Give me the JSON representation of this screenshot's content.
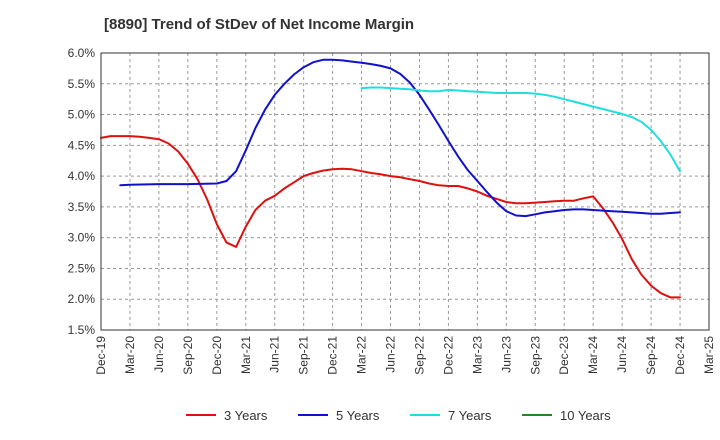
{
  "chart_data": {
    "type": "line",
    "title": "[8890]  Trend of StDev of Net Income Margin",
    "xlabel": "",
    "ylabel": "",
    "x_ticks": [
      "Dec-19",
      "Mar-20",
      "Jun-20",
      "Sep-20",
      "Dec-20",
      "Mar-21",
      "Jun-21",
      "Sep-21",
      "Dec-21",
      "Mar-22",
      "Jun-22",
      "Sep-22",
      "Dec-22",
      "Mar-23",
      "Jun-23",
      "Sep-23",
      "Dec-23",
      "Mar-24",
      "Jun-24",
      "Sep-24",
      "Dec-24",
      "Mar-25"
    ],
    "y_ticks": [
      "1.5%",
      "2.0%",
      "2.5%",
      "3.0%",
      "3.5%",
      "4.0%",
      "4.5%",
      "5.0%",
      "5.5%",
      "6.0%"
    ],
    "ylim": [
      1.5,
      6.0
    ],
    "grid": "dashed",
    "legend_position": "bottom",
    "series": [
      {
        "name": "3 Years",
        "color": "#dd1111",
        "points": [
          [
            "Dec-19",
            4.62
          ],
          [
            "Jan-20",
            4.65
          ],
          [
            "Feb-20",
            4.65
          ],
          [
            "Mar-20",
            4.65
          ],
          [
            "Apr-20",
            4.64
          ],
          [
            "May-20",
            4.62
          ],
          [
            "Jun-20",
            4.6
          ],
          [
            "Jul-20",
            4.53
          ],
          [
            "Aug-20",
            4.4
          ],
          [
            "Sep-20",
            4.2
          ],
          [
            "Oct-20",
            3.95
          ],
          [
            "Nov-20",
            3.62
          ],
          [
            "Dec-20",
            3.22
          ],
          [
            "Jan-21",
            2.92
          ],
          [
            "Feb-21",
            2.85
          ],
          [
            "Mar-21",
            3.18
          ],
          [
            "Apr-21",
            3.45
          ],
          [
            "May-21",
            3.6
          ],
          [
            "Jun-21",
            3.68
          ],
          [
            "Jul-21",
            3.8
          ],
          [
            "Aug-21",
            3.9
          ],
          [
            "Sep-21",
            4.0
          ],
          [
            "Oct-21",
            4.05
          ],
          [
            "Nov-21",
            4.09
          ],
          [
            "Dec-21",
            4.11
          ],
          [
            "Jan-22",
            4.12
          ],
          [
            "Feb-22",
            4.11
          ],
          [
            "Mar-22",
            4.08
          ],
          [
            "Apr-22",
            4.05
          ],
          [
            "May-22",
            4.03
          ],
          [
            "Jun-22",
            4.0
          ],
          [
            "Jul-22",
            3.98
          ],
          [
            "Aug-22",
            3.95
          ],
          [
            "Sep-22",
            3.92
          ],
          [
            "Oct-22",
            3.88
          ],
          [
            "Nov-22",
            3.85
          ],
          [
            "Dec-22",
            3.84
          ],
          [
            "Jan-23",
            3.84
          ],
          [
            "Feb-23",
            3.8
          ],
          [
            "Mar-23",
            3.75
          ],
          [
            "Apr-23",
            3.68
          ],
          [
            "May-23",
            3.63
          ],
          [
            "Jun-23",
            3.58
          ],
          [
            "Jul-23",
            3.56
          ],
          [
            "Aug-23",
            3.56
          ],
          [
            "Sep-23",
            3.57
          ],
          [
            "Oct-23",
            3.58
          ],
          [
            "Nov-23",
            3.59
          ],
          [
            "Dec-23",
            3.6
          ],
          [
            "Jan-24",
            3.6
          ],
          [
            "Feb-24",
            3.64
          ],
          [
            "Mar-24",
            3.67
          ],
          [
            "Apr-24",
            3.48
          ],
          [
            "May-24",
            3.25
          ],
          [
            "Jun-24",
            2.98
          ],
          [
            "Jul-24",
            2.65
          ],
          [
            "Aug-24",
            2.4
          ],
          [
            "Sep-24",
            2.22
          ],
          [
            "Oct-24",
            2.1
          ],
          [
            "Nov-24",
            2.03
          ],
          [
            "Dec-24",
            2.03
          ]
        ]
      },
      {
        "name": "5 Years",
        "color": "#1111cc",
        "points": [
          [
            "Feb-20",
            3.85
          ],
          [
            "Mar-20",
            3.86
          ],
          [
            "Jun-20",
            3.87
          ],
          [
            "Sep-20",
            3.87
          ],
          [
            "Dec-20",
            3.88
          ],
          [
            "Jan-21",
            3.92
          ],
          [
            "Feb-21",
            4.08
          ],
          [
            "Mar-21",
            4.42
          ],
          [
            "Apr-21",
            4.78
          ],
          [
            "May-21",
            5.08
          ],
          [
            "Jun-21",
            5.32
          ],
          [
            "Jul-21",
            5.5
          ],
          [
            "Aug-21",
            5.65
          ],
          [
            "Sep-21",
            5.77
          ],
          [
            "Oct-21",
            5.85
          ],
          [
            "Nov-21",
            5.89
          ],
          [
            "Dec-21",
            5.89
          ],
          [
            "Jan-22",
            5.88
          ],
          [
            "Feb-22",
            5.86
          ],
          [
            "Mar-22",
            5.84
          ],
          [
            "Apr-22",
            5.82
          ],
          [
            "May-22",
            5.79
          ],
          [
            "Jun-22",
            5.75
          ],
          [
            "Jul-22",
            5.66
          ],
          [
            "Aug-22",
            5.52
          ],
          [
            "Sep-22",
            5.32
          ],
          [
            "Oct-22",
            5.08
          ],
          [
            "Nov-22",
            4.83
          ],
          [
            "Dec-22",
            4.57
          ],
          [
            "Jan-23",
            4.32
          ],
          [
            "Feb-23",
            4.1
          ],
          [
            "Mar-23",
            3.92
          ],
          [
            "Apr-23",
            3.74
          ],
          [
            "May-23",
            3.57
          ],
          [
            "Jun-23",
            3.43
          ],
          [
            "Jul-23",
            3.36
          ],
          [
            "Aug-23",
            3.35
          ],
          [
            "Sep-23",
            3.38
          ],
          [
            "Oct-23",
            3.41
          ],
          [
            "Nov-23",
            3.43
          ],
          [
            "Dec-23",
            3.45
          ],
          [
            "Jan-24",
            3.46
          ],
          [
            "Feb-24",
            3.46
          ],
          [
            "Mar-24",
            3.45
          ],
          [
            "Apr-24",
            3.44
          ],
          [
            "May-24",
            3.43
          ],
          [
            "Jun-24",
            3.42
          ],
          [
            "Jul-24",
            3.41
          ],
          [
            "Aug-24",
            3.4
          ],
          [
            "Sep-24",
            3.39
          ],
          [
            "Oct-24",
            3.39
          ],
          [
            "Nov-24",
            3.4
          ],
          [
            "Dec-24",
            3.41
          ]
        ]
      },
      {
        "name": "7 Years",
        "color": "#22dddd",
        "points": [
          [
            "Mar-22",
            5.43
          ],
          [
            "Apr-22",
            5.44
          ],
          [
            "May-22",
            5.44
          ],
          [
            "Jun-22",
            5.43
          ],
          [
            "Jul-22",
            5.42
          ],
          [
            "Aug-22",
            5.41
          ],
          [
            "Sep-22",
            5.39
          ],
          [
            "Oct-22",
            5.38
          ],
          [
            "Nov-22",
            5.38
          ],
          [
            "Dec-22",
            5.4
          ],
          [
            "Jan-23",
            5.39
          ],
          [
            "Feb-23",
            5.38
          ],
          [
            "Mar-23",
            5.37
          ],
          [
            "Apr-23",
            5.36
          ],
          [
            "May-23",
            5.35
          ],
          [
            "Jun-23",
            5.35
          ],
          [
            "Jul-23",
            5.35
          ],
          [
            "Aug-23",
            5.35
          ],
          [
            "Sep-23",
            5.34
          ],
          [
            "Oct-23",
            5.32
          ],
          [
            "Nov-23",
            5.29
          ],
          [
            "Dec-23",
            5.25
          ],
          [
            "Jan-24",
            5.21
          ],
          [
            "Feb-24",
            5.17
          ],
          [
            "Mar-24",
            5.13
          ],
          [
            "Apr-24",
            5.09
          ],
          [
            "May-24",
            5.05
          ],
          [
            "Jun-24",
            5.01
          ],
          [
            "Jul-24",
            4.96
          ],
          [
            "Aug-24",
            4.88
          ],
          [
            "Sep-24",
            4.75
          ],
          [
            "Oct-24",
            4.57
          ],
          [
            "Nov-24",
            4.35
          ],
          [
            "Dec-24",
            4.08
          ]
        ]
      },
      {
        "name": "10 Years",
        "color": "#228822",
        "points": []
      }
    ]
  }
}
